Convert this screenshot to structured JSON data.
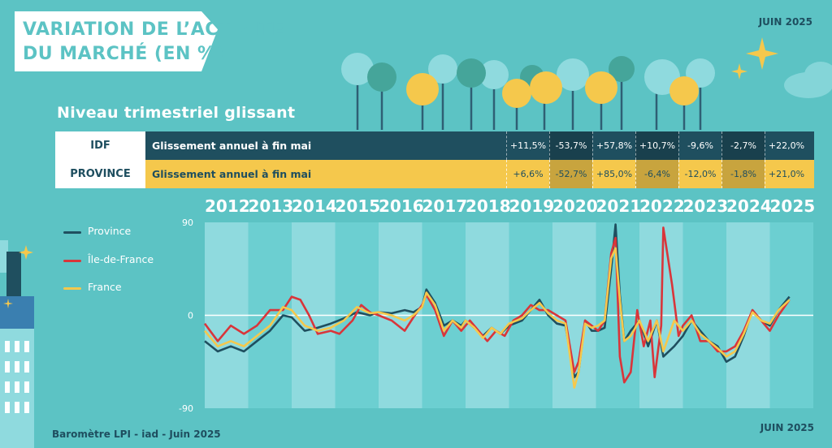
{
  "header": {
    "title_line1": "VARIATION DE L’ACTIVITÉ",
    "title_line2": "DU MARCHÉ (EN %)",
    "date_top": "JUIN 2025",
    "date_bottom": "JUIN 2025",
    "subtitle": "Niveau trimestriel glissant",
    "source": "Baromètre LPI - iad - Juin 2025"
  },
  "table": {
    "rows": [
      {
        "label": "IDF",
        "desc": "Glissement annuel à fin mai",
        "color": "#1f4f5f",
        "values": [
          "+11,5%",
          "-53,7%",
          "+57,8%",
          "+10,7%",
          "-9,6%",
          "-2,7%",
          "+22,0%"
        ]
      },
      {
        "label": "PROVINCE",
        "desc": "Glissement annuel à fin mai",
        "color": "#f5c84c",
        "values": [
          "+6,6%",
          "-52,7%",
          "+85,0%",
          "-6,4%",
          "-12,0%",
          "-1,8%",
          "+21,0%"
        ]
      }
    ],
    "years": [
      "2019",
      "2020",
      "2021",
      "2022",
      "2023",
      "2024",
      "2025"
    ]
  },
  "legend": [
    {
      "label": "Province",
      "color": "#1f4f5f"
    },
    {
      "label": "Île-de-France",
      "color": "#d9353a"
    },
    {
      "label": "France",
      "color": "#f5c84c"
    }
  ],
  "colors": {
    "background": "#5cc3c4",
    "band_light": "#8fdade",
    "band_dark": "#6ccfd1",
    "dark": "#1f4f5f",
    "red": "#d9353a",
    "yellow": "#f5c84c"
  },
  "chart_data": {
    "type": "line",
    "title": "",
    "xlabel": "",
    "ylabel": "",
    "categories": [
      "2012",
      "2013",
      "2014",
      "2015",
      "2016",
      "2017",
      "2018",
      "2019",
      "2020",
      "2021",
      "2022",
      "2023",
      "2024",
      "2025"
    ],
    "ylim": [
      -90,
      90
    ],
    "yticks": [
      90,
      0,
      -90
    ],
    "series": [
      {
        "name": "Province",
        "color": "#1f4f5f",
        "points": [
          [
            2012.0,
            -25
          ],
          [
            2012.3,
            -35
          ],
          [
            2012.6,
            -30
          ],
          [
            2012.9,
            -35
          ],
          [
            2013.2,
            -25
          ],
          [
            2013.5,
            -15
          ],
          [
            2013.8,
            0
          ],
          [
            2014.0,
            -2
          ],
          [
            2014.3,
            -15
          ],
          [
            2014.6,
            -12
          ],
          [
            2014.9,
            -8
          ],
          [
            2015.2,
            -3
          ],
          [
            2015.5,
            3
          ],
          [
            2015.8,
            0
          ],
          [
            2016.0,
            3
          ],
          [
            2016.3,
            2
          ],
          [
            2016.6,
            5
          ],
          [
            2016.8,
            3
          ],
          [
            2017.0,
            8
          ],
          [
            2017.1,
            25
          ],
          [
            2017.3,
            12
          ],
          [
            2017.5,
            -10
          ],
          [
            2017.7,
            -5
          ],
          [
            2017.9,
            -10
          ],
          [
            2018.0,
            -5
          ],
          [
            2018.2,
            -12
          ],
          [
            2018.4,
            -20
          ],
          [
            2018.6,
            -12
          ],
          [
            2018.8,
            -18
          ],
          [
            2019.0,
            -10
          ],
          [
            2019.3,
            -5
          ],
          [
            2019.5,
            5
          ],
          [
            2019.7,
            15
          ],
          [
            2019.9,
            0
          ],
          [
            2020.1,
            -8
          ],
          [
            2020.3,
            -10
          ],
          [
            2020.5,
            -60
          ],
          [
            2020.6,
            -55
          ],
          [
            2020.75,
            -5
          ],
          [
            2020.9,
            -15
          ],
          [
            2021.05,
            -15
          ],
          [
            2021.2,
            -12
          ],
          [
            2021.35,
            45
          ],
          [
            2021.45,
            88
          ],
          [
            2021.55,
            20
          ],
          [
            2021.65,
            -25
          ],
          [
            2021.8,
            -15
          ],
          [
            2022.0,
            -5
          ],
          [
            2022.2,
            -30
          ],
          [
            2022.4,
            -5
          ],
          [
            2022.55,
            -40
          ],
          [
            2022.8,
            -30
          ],
          [
            2023.0,
            -20
          ],
          [
            2023.2,
            -5
          ],
          [
            2023.4,
            -15
          ],
          [
            2023.6,
            -25
          ],
          [
            2023.8,
            -30
          ],
          [
            2024.0,
            -45
          ],
          [
            2024.2,
            -40
          ],
          [
            2024.4,
            -20
          ],
          [
            2024.6,
            5
          ],
          [
            2024.8,
            -5
          ],
          [
            2025.0,
            -10
          ],
          [
            2025.2,
            5
          ],
          [
            2025.45,
            18
          ]
        ]
      },
      {
        "name": "Île-de-France",
        "color": "#d9353a",
        "points": [
          [
            2012.0,
            -8
          ],
          [
            2012.3,
            -25
          ],
          [
            2012.6,
            -10
          ],
          [
            2012.9,
            -18
          ],
          [
            2013.2,
            -10
          ],
          [
            2013.5,
            5
          ],
          [
            2013.8,
            5
          ],
          [
            2014.0,
            18
          ],
          [
            2014.2,
            15
          ],
          [
            2014.4,
            0
          ],
          [
            2014.6,
            -18
          ],
          [
            2014.9,
            -15
          ],
          [
            2015.1,
            -18
          ],
          [
            2015.4,
            -5
          ],
          [
            2015.6,
            10
          ],
          [
            2015.8,
            3
          ],
          [
            2016.0,
            0
          ],
          [
            2016.3,
            -5
          ],
          [
            2016.6,
            -15
          ],
          [
            2016.8,
            -2
          ],
          [
            2017.0,
            10
          ],
          [
            2017.1,
            20
          ],
          [
            2017.3,
            5
          ],
          [
            2017.5,
            -20
          ],
          [
            2017.7,
            -5
          ],
          [
            2017.9,
            -15
          ],
          [
            2018.1,
            -5
          ],
          [
            2018.3,
            -15
          ],
          [
            2018.5,
            -25
          ],
          [
            2018.7,
            -15
          ],
          [
            2018.9,
            -20
          ],
          [
            2019.1,
            -5
          ],
          [
            2019.3,
            0
          ],
          [
            2019.5,
            10
          ],
          [
            2019.7,
            5
          ],
          [
            2019.9,
            5
          ],
          [
            2020.1,
            0
          ],
          [
            2020.3,
            -5
          ],
          [
            2020.5,
            -55
          ],
          [
            2020.6,
            -45
          ],
          [
            2020.75,
            -5
          ],
          [
            2020.9,
            -10
          ],
          [
            2021.05,
            -15
          ],
          [
            2021.2,
            -5
          ],
          [
            2021.35,
            60
          ],
          [
            2021.45,
            75
          ],
          [
            2021.55,
            -40
          ],
          [
            2021.65,
            -65
          ],
          [
            2021.8,
            -55
          ],
          [
            2021.95,
            5
          ],
          [
            2022.1,
            -30
          ],
          [
            2022.25,
            -5
          ],
          [
            2022.35,
            -60
          ],
          [
            2022.5,
            -10
          ],
          [
            2022.55,
            85
          ],
          [
            2022.75,
            30
          ],
          [
            2022.9,
            -20
          ],
          [
            2023.0,
            -10
          ],
          [
            2023.2,
            0
          ],
          [
            2023.4,
            -25
          ],
          [
            2023.6,
            -25
          ],
          [
            2023.8,
            -35
          ],
          [
            2024.0,
            -35
          ],
          [
            2024.2,
            -30
          ],
          [
            2024.4,
            -15
          ],
          [
            2024.6,
            5
          ],
          [
            2024.8,
            -5
          ],
          [
            2025.0,
            -15
          ],
          [
            2025.2,
            0
          ],
          [
            2025.45,
            15
          ]
        ]
      },
      {
        "name": "France",
        "color": "#f5c84c",
        "points": [
          [
            2012.0,
            -15
          ],
          [
            2012.3,
            -30
          ],
          [
            2012.6,
            -25
          ],
          [
            2012.9,
            -30
          ],
          [
            2013.2,
            -20
          ],
          [
            2013.5,
            -10
          ],
          [
            2013.8,
            8
          ],
          [
            2014.0,
            5
          ],
          [
            2014.3,
            -10
          ],
          [
            2014.6,
            -15
          ],
          [
            2014.9,
            -12
          ],
          [
            2015.2,
            -5
          ],
          [
            2015.5,
            8
          ],
          [
            2015.8,
            2
          ],
          [
            2016.0,
            3
          ],
          [
            2016.3,
            0
          ],
          [
            2016.6,
            -5
          ],
          [
            2016.8,
            0
          ],
          [
            2017.0,
            8
          ],
          [
            2017.1,
            22
          ],
          [
            2017.3,
            10
          ],
          [
            2017.5,
            -15
          ],
          [
            2017.7,
            -5
          ],
          [
            2017.9,
            -12
          ],
          [
            2018.0,
            -5
          ],
          [
            2018.2,
            -12
          ],
          [
            2018.4,
            -22
          ],
          [
            2018.6,
            -12
          ],
          [
            2018.8,
            -18
          ],
          [
            2019.0,
            -8
          ],
          [
            2019.3,
            -3
          ],
          [
            2019.5,
            5
          ],
          [
            2019.7,
            12
          ],
          [
            2019.9,
            2
          ],
          [
            2020.1,
            -5
          ],
          [
            2020.3,
            -8
          ],
          [
            2020.5,
            -70
          ],
          [
            2020.6,
            -55
          ],
          [
            2020.75,
            -8
          ],
          [
            2020.9,
            -12
          ],
          [
            2021.05,
            -10
          ],
          [
            2021.2,
            -5
          ],
          [
            2021.35,
            55
          ],
          [
            2021.45,
            65
          ],
          [
            2021.55,
            15
          ],
          [
            2021.65,
            -25
          ],
          [
            2021.8,
            -20
          ],
          [
            2022.0,
            -5
          ],
          [
            2022.2,
            -25
          ],
          [
            2022.4,
            -5
          ],
          [
            2022.55,
            -35
          ],
          [
            2022.8,
            -5
          ],
          [
            2023.0,
            -15
          ],
          [
            2023.2,
            -5
          ],
          [
            2023.4,
            -18
          ],
          [
            2023.6,
            -25
          ],
          [
            2023.8,
            -32
          ],
          [
            2024.0,
            -40
          ],
          [
            2024.2,
            -35
          ],
          [
            2024.4,
            -18
          ],
          [
            2024.6,
            3
          ],
          [
            2024.8,
            -5
          ],
          [
            2025.0,
            -8
          ],
          [
            2025.2,
            5
          ],
          [
            2025.45,
            15
          ]
        ]
      }
    ]
  }
}
